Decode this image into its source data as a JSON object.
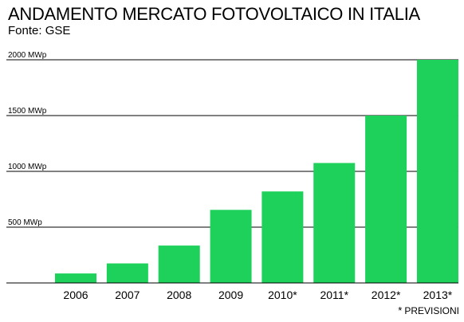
{
  "chart_data": {
    "type": "bar",
    "title": "ANDAMENTO MERCATO FOTOVOLTAICO IN ITALIA",
    "subtitle": "Fonte: GSE",
    "categories": [
      "2006",
      "2007",
      "2008",
      "2009",
      "2010*",
      "2011*",
      "2012*",
      "2013*"
    ],
    "values": [
      85,
      175,
      335,
      655,
      820,
      1075,
      1500,
      2000
    ],
    "ylim": [
      0,
      2000
    ],
    "yticks": [
      500,
      1000,
      1500,
      2000
    ],
    "ytick_labels": [
      "500 MWp",
      "1000 MWp",
      "1500 MWp",
      "2000 MWp"
    ],
    "grid": true,
    "bar_color": "#1dd15a",
    "footnote": {
      "star": "*",
      "text": "PREVISIONI"
    }
  }
}
